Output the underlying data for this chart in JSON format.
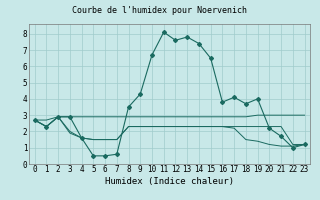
{
  "title": "Courbe de l'humidex pour Noervenich",
  "xlabel": "Humidex (Indice chaleur)",
  "bg_color": "#c8e8e8",
  "grid_color": "#a0cccc",
  "line_color": "#1a6a60",
  "xlim": [
    -0.5,
    23.5
  ],
  "ylim": [
    0,
    8.6
  ],
  "xticks": [
    0,
    1,
    2,
    3,
    4,
    5,
    6,
    7,
    8,
    9,
    10,
    11,
    12,
    13,
    14,
    15,
    16,
    17,
    18,
    19,
    20,
    21,
    22,
    23
  ],
  "yticks": [
    0,
    1,
    2,
    3,
    4,
    5,
    6,
    7,
    8
  ],
  "line1_x": [
    0,
    1,
    2,
    3,
    4,
    5,
    6,
    7,
    8,
    9,
    10,
    11,
    12,
    13,
    14,
    15,
    16,
    17,
    18,
    19,
    20,
    21,
    22,
    23
  ],
  "line1_y": [
    2.7,
    2.3,
    2.9,
    2.9,
    1.6,
    0.5,
    0.5,
    0.6,
    3.5,
    4.3,
    6.7,
    8.1,
    7.6,
    7.8,
    7.4,
    6.5,
    3.8,
    4.1,
    3.7,
    4.0,
    2.2,
    1.7,
    1.0,
    1.2
  ],
  "line2_x": [
    0,
    1,
    2,
    3,
    4,
    5,
    6,
    7,
    8,
    9,
    10,
    11,
    12,
    13,
    14,
    15,
    16,
    17,
    18,
    19,
    20,
    21,
    22,
    23
  ],
  "line2_y": [
    2.7,
    2.7,
    2.9,
    2.9,
    2.9,
    2.9,
    2.9,
    2.9,
    2.9,
    2.9,
    2.9,
    2.9,
    2.9,
    2.9,
    2.9,
    2.9,
    2.9,
    2.9,
    2.9,
    3.0,
    3.0,
    3.0,
    3.0,
    3.0
  ],
  "line3_x": [
    0,
    1,
    2,
    3,
    4,
    5,
    6,
    7,
    8,
    9,
    10,
    11,
    12,
    13,
    14,
    15,
    16,
    17,
    18,
    19,
    20,
    21,
    22,
    23
  ],
  "line3_y": [
    2.7,
    2.3,
    2.9,
    1.9,
    1.6,
    1.5,
    1.5,
    1.5,
    2.3,
    2.3,
    2.3,
    2.3,
    2.3,
    2.3,
    2.3,
    2.3,
    2.3,
    2.3,
    2.3,
    2.3,
    2.3,
    2.3,
    1.2,
    1.2
  ],
  "line4_x": [
    0,
    1,
    2,
    3,
    4,
    5,
    6,
    7,
    8,
    9,
    10,
    11,
    12,
    13,
    14,
    15,
    16,
    17,
    18,
    19,
    20,
    21,
    22,
    23
  ],
  "line4_y": [
    2.7,
    2.3,
    2.9,
    2.0,
    1.6,
    1.5,
    1.5,
    1.5,
    2.3,
    2.3,
    2.3,
    2.3,
    2.3,
    2.3,
    2.3,
    2.3,
    2.3,
    2.2,
    1.5,
    1.4,
    1.2,
    1.1,
    1.1,
    1.2
  ],
  "title_fontsize": 6.0,
  "xlabel_fontsize": 6.5,
  "tick_fontsize": 5.5
}
